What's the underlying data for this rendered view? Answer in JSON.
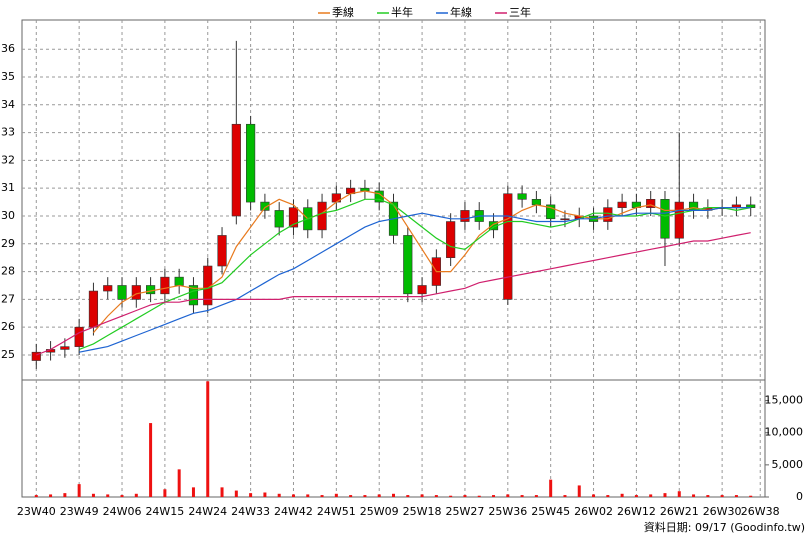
{
  "chart_data": {
    "type": "candlestick",
    "up_color": "#dd0000",
    "down_color": "#00bb00",
    "outline": "#333333",
    "x": [
      0,
      3,
      6,
      9,
      12,
      15,
      18,
      21,
      24,
      27,
      30,
      33,
      36,
      39,
      42,
      45,
      48,
      51,
      54,
      57,
      60,
      63,
      66,
      69,
      72,
      75,
      78,
      81,
      84,
      87,
      90,
      93,
      96,
      99,
      102,
      105,
      108,
      111,
      114,
      117,
      120,
      123,
      126,
      129,
      132,
      135,
      138,
      141,
      144,
      147,
      150
    ],
    "open": [
      24.8,
      25.1,
      25.2,
      25.3,
      26.0,
      27.3,
      27.5,
      27.0,
      27.5,
      27.2,
      27.8,
      27.5,
      26.8,
      28.2,
      30.0,
      33.3,
      30.5,
      30.2,
      29.6,
      30.3,
      29.5,
      30.5,
      30.8,
      31.0,
      30.9,
      30.5,
      29.3,
      27.2,
      27.5,
      28.5,
      29.8,
      30.2,
      29.8,
      27.0,
      30.8,
      30.6,
      30.4,
      29.9,
      29.9,
      30.0,
      29.8,
      30.3,
      30.5,
      30.3,
      30.6,
      29.2,
      30.5,
      30.2,
      30.3,
      30.3,
      30.4
    ],
    "high": [
      25.4,
      25.5,
      25.6,
      26.3,
      27.6,
      27.8,
      27.8,
      27.8,
      27.8,
      28.1,
      28.1,
      27.8,
      28.5,
      29.6,
      36.3,
      33.6,
      30.8,
      30.5,
      30.6,
      30.6,
      30.8,
      31.1,
      31.3,
      31.3,
      31.2,
      30.8,
      29.6,
      27.8,
      28.8,
      30.1,
      30.5,
      30.5,
      30.1,
      31.1,
      31.1,
      30.9,
      30.7,
      30.2,
      30.3,
      30.3,
      30.6,
      30.8,
      30.8,
      30.9,
      30.9,
      33.0,
      30.8,
      30.6,
      30.6,
      30.7,
      30.7
    ],
    "low": [
      24.5,
      24.8,
      24.9,
      25.0,
      25.7,
      27.0,
      26.7,
      26.7,
      26.9,
      26.9,
      27.2,
      26.5,
      26.5,
      27.9,
      29.7,
      30.2,
      29.9,
      29.3,
      29.3,
      29.2,
      29.2,
      30.2,
      30.5,
      30.6,
      30.2,
      29.0,
      26.9,
      26.9,
      27.2,
      28.2,
      29.5,
      29.5,
      29.2,
      26.8,
      30.3,
      30.1,
      29.6,
      29.6,
      29.6,
      29.5,
      29.5,
      30.0,
      30.0,
      30.0,
      28.2,
      28.9,
      29.9,
      29.9,
      30.0,
      30.0,
      30.0
    ],
    "close": [
      25.1,
      25.2,
      25.3,
      26.0,
      27.3,
      27.5,
      27.0,
      27.5,
      27.2,
      27.8,
      27.5,
      26.8,
      28.2,
      29.3,
      33.3,
      30.5,
      30.2,
      29.6,
      30.3,
      29.5,
      30.5,
      30.8,
      31.0,
      30.9,
      30.5,
      29.3,
      27.2,
      27.5,
      28.5,
      29.8,
      30.2,
      29.8,
      29.5,
      30.8,
      30.6,
      30.4,
      29.9,
      29.9,
      30.0,
      29.8,
      30.3,
      30.5,
      30.3,
      30.6,
      29.2,
      30.5,
      30.2,
      30.3,
      30.3,
      30.4,
      30.3
    ],
    "series": [
      {
        "name": "季線",
        "color": "#e87a1e",
        "values": [
          null,
          null,
          null,
          null,
          25.8,
          26.4,
          26.9,
          27.2,
          27.3,
          27.4,
          27.5,
          27.4,
          27.4,
          27.8,
          28.9,
          29.6,
          30.3,
          30.6,
          30.4,
          29.9,
          30.1,
          30.5,
          30.8,
          30.9,
          30.8,
          30.4,
          29.6,
          28.8,
          28.0,
          28.0,
          28.6,
          29.3,
          29.7,
          29.9,
          30.2,
          30.4,
          30.3,
          30.1,
          30.0,
          29.9,
          29.9,
          30.1,
          30.3,
          30.4,
          30.2,
          30.2,
          30.3,
          30.2,
          30.3,
          30.3,
          30.3
        ]
      },
      {
        "name": "半年",
        "color": "#22cc22",
        "values": [
          null,
          null,
          null,
          25.2,
          25.4,
          25.7,
          26.0,
          26.3,
          26.6,
          26.9,
          27.1,
          27.3,
          27.4,
          27.6,
          28.1,
          28.6,
          29.0,
          29.4,
          29.7,
          29.9,
          30.1,
          30.2,
          30.4,
          30.6,
          30.6,
          30.4,
          30.0,
          29.6,
          29.2,
          28.9,
          28.8,
          29.2,
          29.6,
          29.8,
          29.8,
          29.7,
          29.6,
          29.7,
          29.9,
          30.1,
          30.1,
          30.0,
          30.0,
          30.1,
          30.0,
          30.1,
          30.2,
          30.3,
          30.3,
          30.2,
          30.3
        ]
      },
      {
        "name": "年線",
        "color": "#1e64d2",
        "values": [
          null,
          null,
          null,
          25.1,
          25.2,
          25.3,
          25.5,
          25.7,
          25.9,
          26.1,
          26.3,
          26.5,
          26.6,
          26.8,
          27.0,
          27.3,
          27.6,
          27.9,
          28.1,
          28.4,
          28.7,
          29.0,
          29.3,
          29.6,
          29.8,
          29.9,
          30.0,
          30.1,
          30.0,
          29.9,
          29.9,
          30.0,
          30.0,
          30.0,
          29.9,
          29.8,
          29.8,
          29.8,
          29.9,
          29.9,
          30.0,
          30.0,
          30.1,
          30.1,
          30.1,
          30.2,
          30.2,
          30.2,
          30.3,
          30.3,
          30.3
        ]
      },
      {
        "name": "三年",
        "color": "#d0206e",
        "values": [
          25.0,
          25.2,
          25.5,
          25.8,
          26.0,
          26.2,
          26.4,
          26.6,
          26.8,
          26.9,
          26.9,
          27.0,
          27.0,
          27.0,
          27.0,
          27.0,
          27.0,
          27.0,
          27.1,
          27.1,
          27.1,
          27.1,
          27.1,
          27.1,
          27.1,
          27.1,
          27.1,
          27.1,
          27.2,
          27.3,
          27.4,
          27.6,
          27.7,
          27.8,
          27.9,
          28.0,
          28.1,
          28.2,
          28.3,
          28.4,
          28.5,
          28.6,
          28.7,
          28.8,
          28.9,
          29.0,
          29.1,
          29.1,
          29.2,
          29.3,
          29.4
        ]
      }
    ],
    "xlim": [
      -3,
      153
    ],
    "xticks": [
      {
        "value": 0,
        "label": "23W40"
      },
      {
        "value": 9,
        "label": "23W49"
      },
      {
        "value": 18,
        "label": "24W06"
      },
      {
        "value": 27,
        "label": "24W15"
      },
      {
        "value": 36,
        "label": "24W24"
      },
      {
        "value": 45,
        "label": "24W33"
      },
      {
        "value": 54,
        "label": "24W42"
      },
      {
        "value": 63,
        "label": "24W51"
      },
      {
        "value": 72,
        "label": "25W09"
      },
      {
        "value": 81,
        "label": "25W18"
      },
      {
        "value": 90,
        "label": "25W27"
      },
      {
        "value": 99,
        "label": "25W36"
      },
      {
        "value": 108,
        "label": "25W45"
      },
      {
        "value": 117,
        "label": "26W02"
      },
      {
        "value": 126,
        "label": "26W12"
      },
      {
        "value": 135,
        "label": "26W21"
      },
      {
        "value": 144,
        "label": "26W30"
      },
      {
        "value": 152,
        "label": "26W38"
      }
    ],
    "ylim": [
      24.1,
      37.05
    ],
    "yticks": [
      25,
      26,
      27,
      28,
      29,
      30,
      31,
      32,
      33,
      34,
      35,
      36
    ],
    "grid": true,
    "volume": {
      "color": "#ee1111",
      "values": [
        300,
        400,
        600,
        2000,
        500,
        400,
        300,
        500,
        11500,
        1200,
        4300,
        1500,
        18000,
        1500,
        1000,
        600,
        700,
        500,
        400,
        400,
        300,
        500,
        300,
        300,
        400,
        500,
        300,
        400,
        300,
        200,
        300,
        200,
        300,
        400,
        300,
        300,
        2700,
        300,
        1800,
        400,
        300,
        500,
        300,
        400,
        600,
        900,
        400,
        300,
        300,
        300,
        200
      ],
      "ylim": [
        0,
        18200
      ],
      "yticks": [
        0,
        {
          "value": 5000,
          "label": "5,000"
        },
        {
          "value": 10000,
          "label": "10,000"
        },
        {
          "value": 15000,
          "label": "15,000"
        }
      ]
    },
    "footnote": "資料日期: 09/17 (Goodinfo.tw)"
  }
}
